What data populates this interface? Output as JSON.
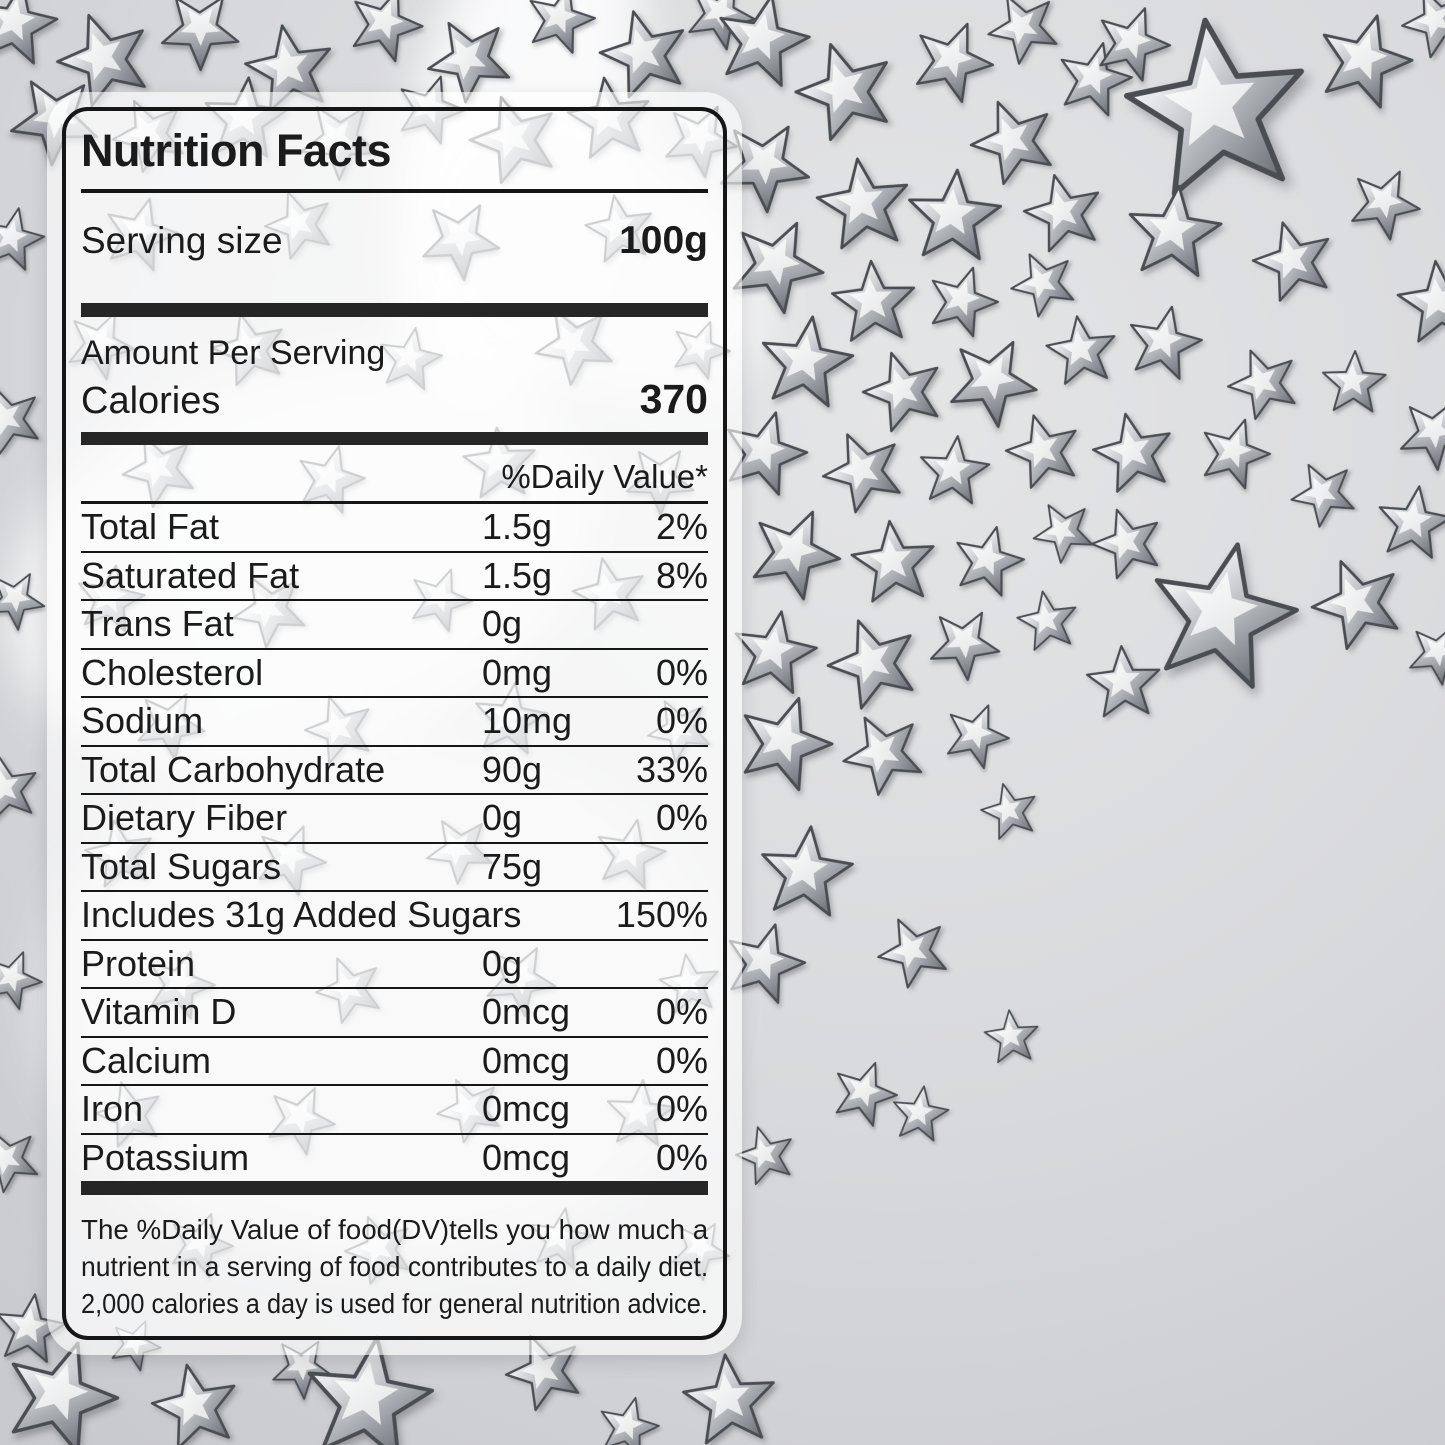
{
  "label": {
    "title": "Nutrition Facts",
    "serving": {
      "name": "Serving size",
      "value": "100g"
    },
    "amount_per_serving": "Amount Per Serving",
    "calories": {
      "name": "Calories",
      "value": "370"
    },
    "daily_value_header": "%Daily Value*",
    "rows": [
      {
        "name": "Total Fat",
        "amount": "1.5g",
        "dv": "2%"
      },
      {
        "name": "Saturated Fat",
        "amount": "1.5g",
        "dv": "8%"
      },
      {
        "name": "Trans Fat",
        "amount": "0g",
        "dv": ""
      },
      {
        "name": "Cholesterol",
        "amount": "0mg",
        "dv": "0%"
      },
      {
        "name": "Sodium",
        "amount": "10mg",
        "dv": "0%"
      },
      {
        "name": "Total Carbohydrate",
        "amount": "90g",
        "dv": "33%"
      },
      {
        "name": "Dietary Fiber",
        "amount": "0g",
        "dv": "0%"
      },
      {
        "name": "Total Sugars",
        "amount": "75g",
        "dv": ""
      },
      {
        "name": "Includes 31g Added Sugars",
        "amount": "",
        "dv": "150%"
      },
      {
        "name": "Protein",
        "amount": "0g",
        "dv": ""
      },
      {
        "name": "Vitamin D",
        "amount": "0mcg",
        "dv": "0%"
      },
      {
        "name": "Calcium",
        "amount": "0mcg",
        "dv": "0%"
      },
      {
        "name": "Iron",
        "amount": "0mcg",
        "dv": "0%"
      },
      {
        "name": "Potassium",
        "amount": "0mcg",
        "dv": "0%"
      }
    ],
    "footnote_lines": [
      "The %Daily Value of food(DV)tells you how much a",
      "nutrient in a serving of food contributes to a daily diet.",
      "2,000 calories a day is used for general nutrition advice."
    ]
  },
  "colors": {
    "page_bg": "#dcdde0",
    "page_bg_edge": "#cdced2",
    "label_border": "#161616",
    "divider": "#161616",
    "thick_bar": "#262626",
    "text": "#1b1b1b",
    "star_light": "#fafbfc",
    "star_mid": "#b9bcc1",
    "star_dark": "#5f6268"
  }
}
